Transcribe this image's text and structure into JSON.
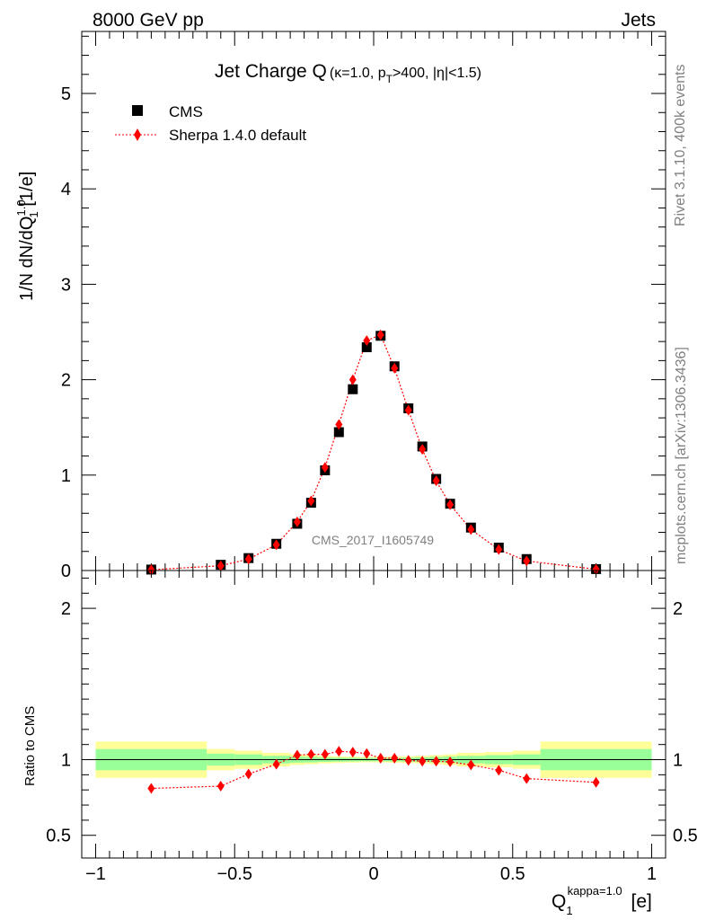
{
  "header": {
    "left": "8000 GeV pp",
    "right": "Jets"
  },
  "side_labels": {
    "rivet": "Rivet 3.1.10,  400k events",
    "mcplots": "mcplots.cern.ch [arXiv:1306.3436]"
  },
  "watermark": "CMS_2017_I1605749",
  "title": {
    "main": "Jet Charge Q",
    "sub": "(κ=1.0, p",
    "sub_idx": "T",
    "sub_rest": ">400, |η|<1.5)"
  },
  "y_label": {
    "prefix": "1/N dN/dQ",
    "sup": "1.0",
    "sub": "1",
    "suffix": " [1/e]"
  },
  "x_label": {
    "main": "Q",
    "sub": "1",
    "sup": "kappa=1.0",
    "suffix": " [e]"
  },
  "ratio_label": "Ratio to CMS",
  "legend": {
    "data": "CMS",
    "mc": "Sherpa 1.4.0 default"
  },
  "colors": {
    "data": "#000000",
    "mc": "#ff0000",
    "band_inner": "#99ff99",
    "band_outer": "#ffff99"
  },
  "chart_data": [
    {
      "type": "scatter",
      "panel": "main",
      "xlim": [
        -1.05,
        1.05
      ],
      "ylim": [
        0,
        5.65
      ],
      "y_ticks": [
        0,
        1,
        2,
        3,
        4,
        5
      ],
      "y_tick_labels": [
        "0",
        "1",
        "2",
        "3",
        "4",
        "5"
      ],
      "x": [
        -0.8,
        -0.55,
        -0.45,
        -0.35,
        -0.275,
        -0.225,
        -0.175,
        -0.125,
        -0.075,
        -0.025,
        0.025,
        0.075,
        0.125,
        0.175,
        0.225,
        0.275,
        0.35,
        0.45,
        0.55,
        0.8
      ],
      "series": [
        {
          "name": "CMS",
          "values": [
            0.01,
            0.06,
            0.13,
            0.28,
            0.49,
            0.71,
            1.05,
            1.45,
            1.9,
            2.34,
            2.46,
            2.14,
            1.7,
            1.3,
            0.96,
            0.7,
            0.45,
            0.24,
            0.12,
            0.015
          ]
        },
        {
          "name": "Sherpa 1.4.0 default",
          "values": [
            0.008,
            0.05,
            0.12,
            0.27,
            0.51,
            0.73,
            1.08,
            1.53,
            2.0,
            2.41,
            2.47,
            2.12,
            1.68,
            1.27,
            0.94,
            0.69,
            0.43,
            0.22,
            0.1,
            0.013
          ]
        }
      ]
    },
    {
      "type": "scatter",
      "panel": "ratio",
      "xlim": [
        -1.05,
        1.05
      ],
      "ylim": [
        0.35,
        2.25
      ],
      "y_ticks": [
        0.5,
        1,
        2
      ],
      "y_tick_labels": [
        "0.5",
        "1",
        "2"
      ],
      "x_ticks": [
        -1,
        -0.5,
        0,
        0.5,
        1
      ],
      "x_tick_labels": [
        "−1",
        "−0.5",
        "0",
        "0.5",
        "1"
      ],
      "bands": {
        "edges": [
          -1,
          -0.6,
          -0.5,
          -0.4,
          -0.3,
          -0.25,
          -0.2,
          -0.15,
          -0.1,
          -0.05,
          0,
          0.05,
          0.1,
          0.15,
          0.2,
          0.25,
          0.3,
          0.4,
          0.5,
          0.6,
          1
        ],
        "inner": [
          0.07,
          0.04,
          0.035,
          0.025,
          0.02,
          0.018,
          0.015,
          0.013,
          0.012,
          0.011,
          0.011,
          0.012,
          0.013,
          0.015,
          0.018,
          0.02,
          0.025,
          0.03,
          0.035,
          0.07
        ],
        "outer": [
          0.12,
          0.07,
          0.06,
          0.045,
          0.035,
          0.03,
          0.025,
          0.022,
          0.02,
          0.018,
          0.018,
          0.02,
          0.022,
          0.025,
          0.03,
          0.035,
          0.045,
          0.05,
          0.06,
          0.12
        ]
      },
      "series": [
        {
          "name": "Sherpa 1.4.0 default",
          "values": [
            0.81,
            0.825,
            0.905,
            0.97,
            1.03,
            1.035,
            1.035,
            1.055,
            1.05,
            1.04,
            1.01,
            1.01,
            0.995,
            0.99,
            0.99,
            0.985,
            0.965,
            0.93,
            0.875,
            0.85
          ],
          "errors": [
            0.03,
            0.02,
            0.012,
            0.01,
            0.008,
            0.008,
            0.008,
            0.008,
            0.008,
            0.008,
            0.008,
            0.008,
            0.008,
            0.008,
            0.008,
            0.008,
            0.01,
            0.012,
            0.015,
            0.02
          ]
        }
      ]
    }
  ]
}
